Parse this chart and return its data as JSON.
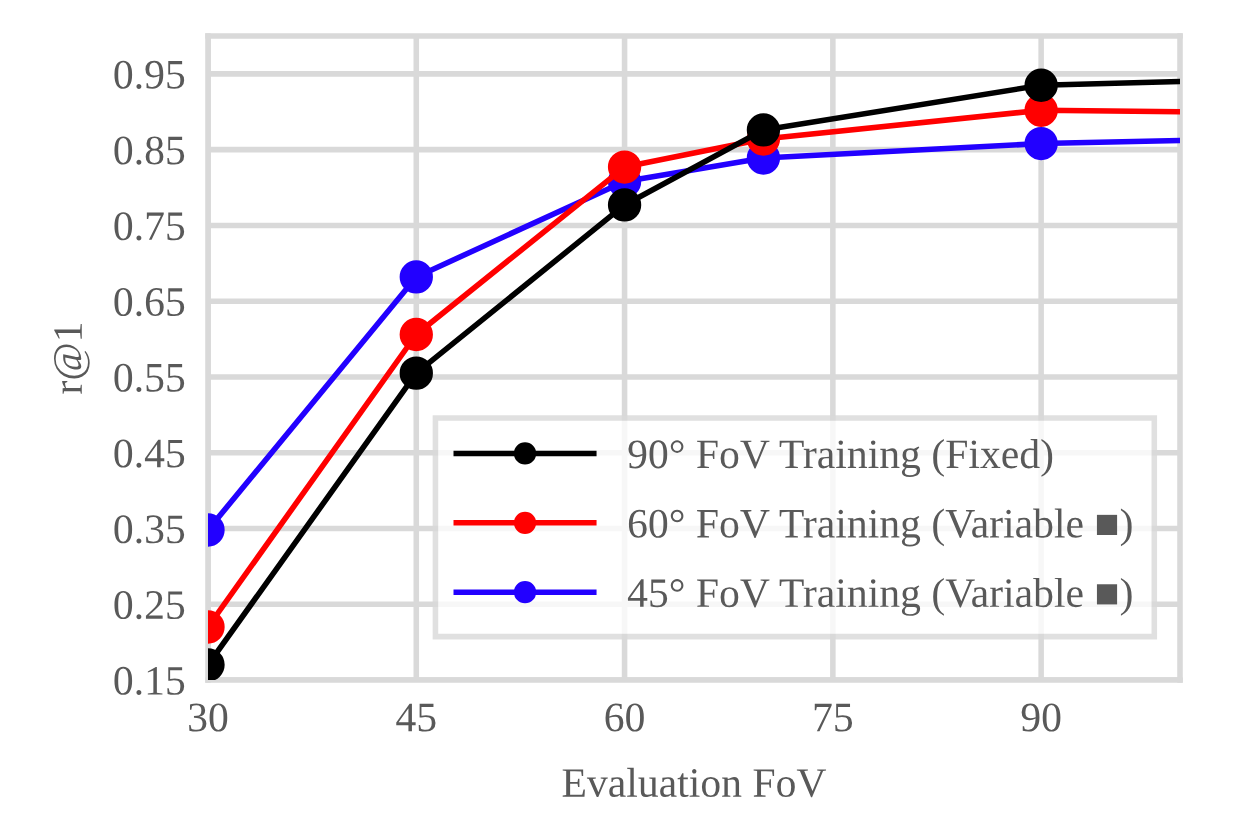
{
  "chart_data": {
    "type": "line",
    "xlabel": "Evaluation FoV",
    "ylabel": "r@1",
    "x": [
      30,
      45,
      60,
      70,
      90,
      100
    ],
    "series": [
      {
        "name": "90° FoV Training (Fixed)",
        "color": "#000000",
        "values": [
          0.17,
          0.555,
          0.777,
          0.876,
          0.935,
          0.94
        ]
      },
      {
        "name": "60° FoV Training (Variable ■)",
        "color": "#ff0000",
        "values": [
          0.22,
          0.606,
          0.827,
          0.864,
          0.902,
          0.9
        ]
      },
      {
        "name": "45° FoV Training (Variable ■)",
        "color": "#2200ff",
        "values": [
          0.348,
          0.682,
          0.808,
          0.839,
          0.858,
          0.862
        ]
      }
    ],
    "xlim": [
      30,
      100
    ],
    "xticks": [
      30,
      45,
      60,
      75,
      90
    ],
    "ylim": [
      0.15,
      1.0
    ],
    "yticks": [
      0.15,
      0.25,
      0.35,
      0.45,
      0.55,
      0.65,
      0.75,
      0.85,
      0.95
    ],
    "grid": true,
    "legend": "bottom right",
    "marker": "circle",
    "line_style": "solid"
  }
}
